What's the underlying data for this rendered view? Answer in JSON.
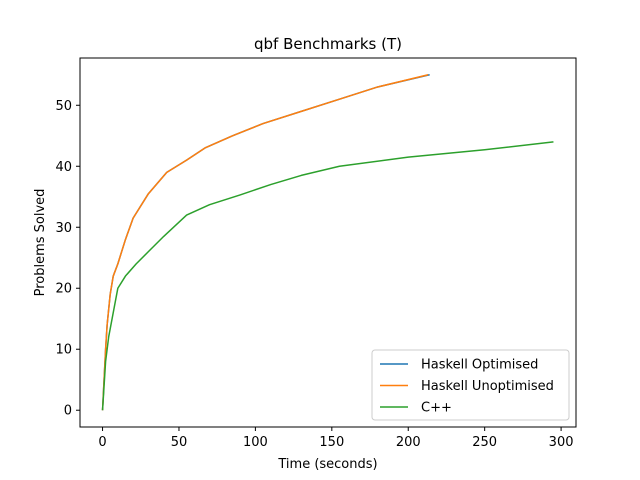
{
  "chart_data": {
    "type": "line",
    "title": "qbf Benchmarks (T)",
    "xlabel": "Time (seconds)",
    "ylabel": "Problems Solved",
    "xlim": [
      -14.75,
      309.75
    ],
    "ylim": [
      -2.75,
      57.75
    ],
    "xticks": [
      0,
      50,
      100,
      150,
      200,
      250,
      300
    ],
    "yticks": [
      0,
      10,
      20,
      30,
      40,
      50
    ],
    "grid": false,
    "legend": "lower-right",
    "series": [
      {
        "name": "Haskell Optimised",
        "color": "#1f77b4",
        "x": [
          0,
          1,
          2,
          3,
          5,
          7,
          10,
          15,
          20,
          30,
          42,
          55,
          67,
          85,
          105,
          130,
          155,
          180,
          214
        ],
        "y": [
          0,
          5,
          10,
          14,
          19,
          22,
          24,
          28,
          31.5,
          35.5,
          39,
          41,
          43,
          45,
          47,
          49,
          51,
          53,
          55
        ]
      },
      {
        "name": "Haskell Unoptimised",
        "color": "#ff7f0e",
        "x": [
          0,
          1,
          2,
          3,
          5,
          7,
          10,
          15,
          20,
          30,
          42,
          55,
          67,
          85,
          105,
          130,
          155,
          180,
          213
        ],
        "y": [
          0,
          5,
          10,
          14,
          19,
          22,
          24,
          28,
          31.5,
          35.5,
          39,
          41,
          43,
          45,
          47,
          49,
          51,
          53,
          55
        ]
      },
      {
        "name": "C++",
        "color": "#2ca02c",
        "x": [
          0,
          1,
          2,
          4,
          7,
          10,
          15,
          22,
          30,
          40,
          55,
          70,
          90,
          110,
          130,
          155,
          200,
          250,
          295
        ],
        "y": [
          0,
          4,
          8,
          12,
          16,
          20,
          22,
          24,
          26,
          28.5,
          32,
          33.7,
          35.3,
          37,
          38.5,
          40,
          41.5,
          42.7,
          44
        ]
      }
    ]
  }
}
